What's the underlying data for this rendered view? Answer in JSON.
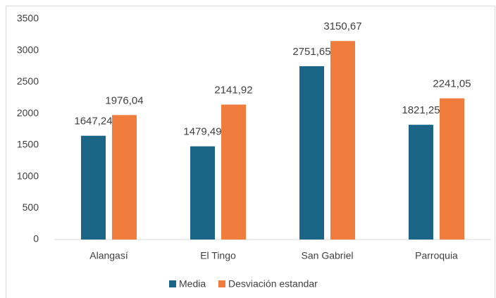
{
  "chart_data": {
    "type": "bar",
    "categories": [
      "Alangasí",
      "El Tingo",
      "San Gabriel",
      "Parroquia"
    ],
    "series": [
      {
        "name": "Media",
        "color": "#1b6586",
        "values": [
          1647.24,
          1479.49,
          2751.65,
          1821.25
        ],
        "value_labels": [
          "1647,24",
          "1479,49",
          "2751,65",
          "1821,25"
        ]
      },
      {
        "name": "Desviación estandar",
        "color": "#f07c3e",
        "values": [
          1976.04,
          2141.92,
          3150.67,
          2241.05
        ],
        "value_labels": [
          "1976,04",
          "2141,92",
          "3150,67",
          "2241,05"
        ]
      }
    ],
    "ylim": [
      0,
      3500
    ],
    "yticks": [
      0,
      500,
      1000,
      1500,
      2000,
      2500,
      3000,
      3500
    ],
    "grid": false,
    "legend": "bottom"
  }
}
